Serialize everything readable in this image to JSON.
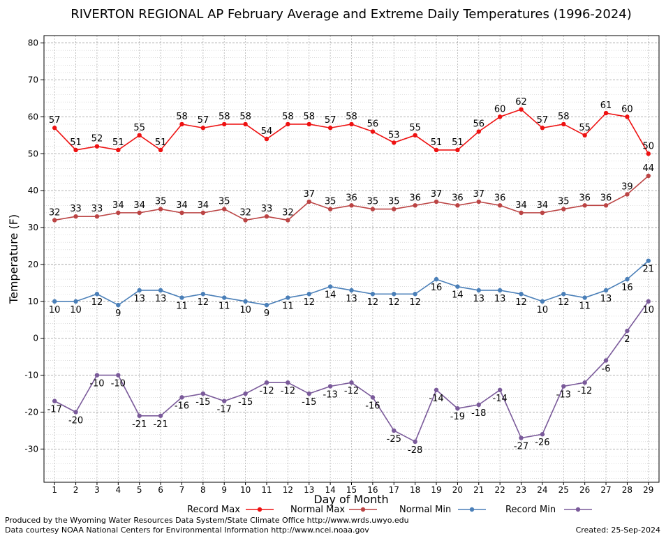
{
  "chart_data": {
    "type": "line",
    "title": "RIVERTON REGIONAL AP February Average and Extreme Daily Temperatures (1996-2024)",
    "xlabel": "Day of Month",
    "ylabel": "Temperature (F)",
    "x": [
      1,
      2,
      3,
      4,
      5,
      6,
      7,
      8,
      9,
      10,
      11,
      12,
      13,
      14,
      15,
      16,
      17,
      18,
      19,
      20,
      21,
      22,
      23,
      24,
      25,
      26,
      27,
      28,
      29
    ],
    "ylim": [
      -39,
      82
    ],
    "yticks": [
      -30,
      -20,
      -10,
      0,
      10,
      20,
      30,
      40,
      50,
      60,
      70,
      80
    ],
    "grid": true,
    "legend_position": "bottom",
    "series": [
      {
        "name": "Record Max",
        "color": "#ee1111",
        "values": [
          57,
          51,
          52,
          51,
          55,
          51,
          58,
          57,
          58,
          58,
          54,
          58,
          58,
          57,
          58,
          56,
          53,
          55,
          51,
          51,
          56,
          60,
          62,
          57,
          58,
          55,
          61,
          60,
          50
        ]
      },
      {
        "name": "Normal Max",
        "color": "#bb4444",
        "values": [
          32,
          33,
          33,
          34,
          34,
          35,
          34,
          34,
          35,
          32,
          33,
          32,
          37,
          35,
          36,
          35,
          35,
          36,
          37,
          36,
          37,
          36,
          34,
          34,
          35,
          36,
          36,
          39,
          44
        ]
      },
      {
        "name": "Normal Min",
        "color": "#4a7fb8",
        "values": [
          10,
          10,
          12,
          9,
          13,
          13,
          11,
          12,
          11,
          10,
          9,
          11,
          12,
          14,
          13,
          12,
          12,
          12,
          16,
          14,
          13,
          13,
          12,
          10,
          12,
          11,
          13,
          16,
          21
        ]
      },
      {
        "name": "Record Min",
        "color": "#7a5a9a",
        "values": [
          -17,
          -20,
          -10,
          -10,
          -21,
          -21,
          -16,
          -15,
          -17,
          -15,
          -12,
          -12,
          -15,
          -13,
          -12,
          -16,
          -25,
          -28,
          -14,
          -19,
          -18,
          -14,
          -27,
          -26,
          -13,
          -12,
          -6,
          2,
          10
        ]
      }
    ]
  },
  "footer": {
    "line1": "Produced by the Wyoming Water Resources Data System/State Climate Office http://www.wrds.uwyo.edu",
    "line2": "Data courtesy NOAA National Centers for Environmental Information http://www.ncei.noaa.gov",
    "created": "Created:  25-Sep-2024"
  }
}
